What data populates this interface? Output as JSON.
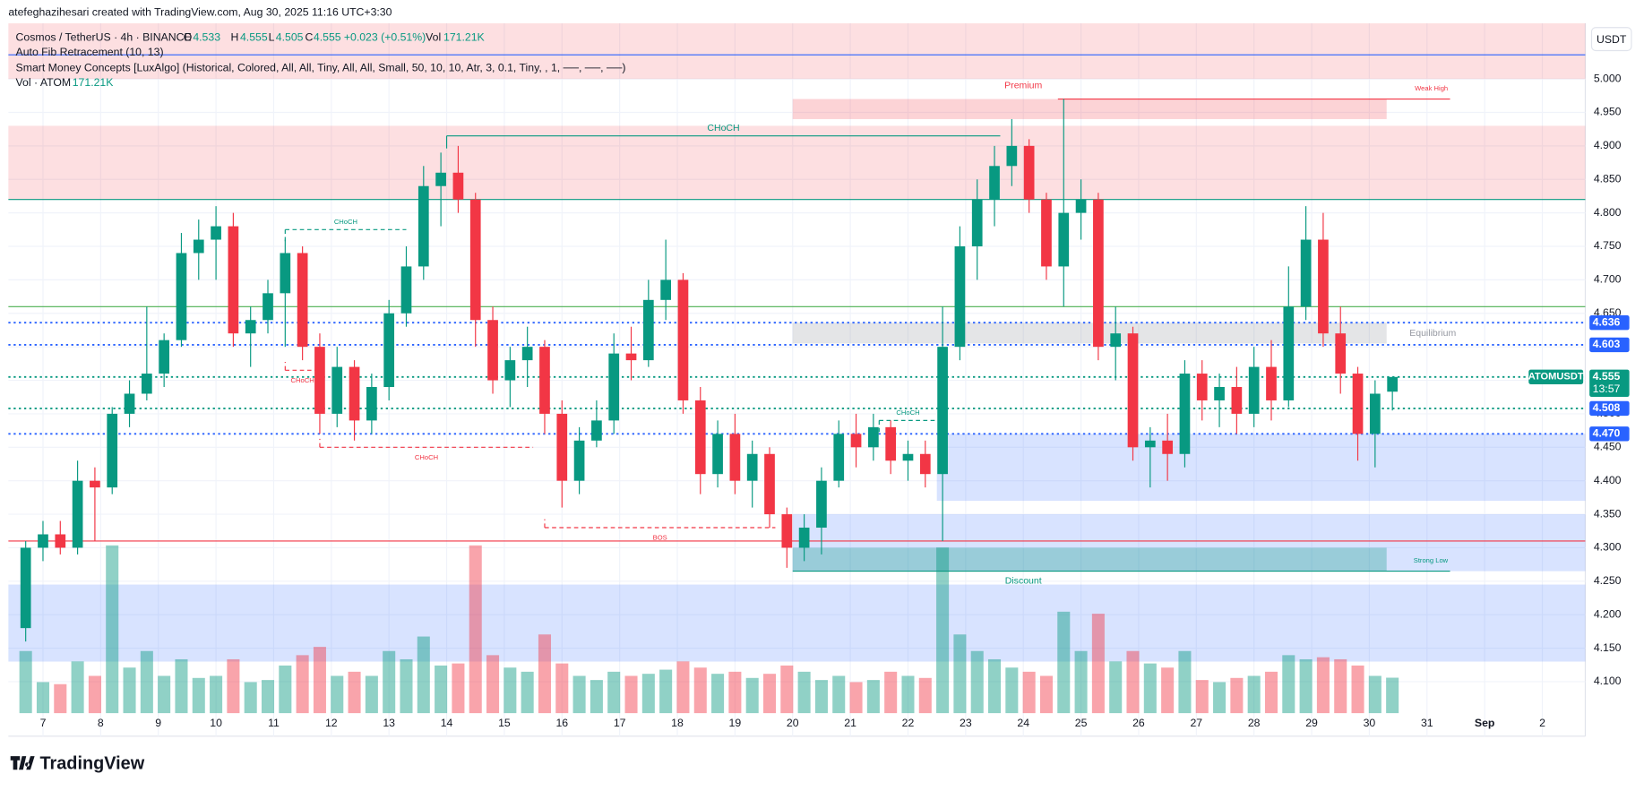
{
  "chart_data": {
    "type": "candlestick",
    "header": {
      "author_line": "atefeghazihesari created with TradingView.com, Aug 30, 2025 11:16 UTC+3:30",
      "symbol": "Cosmos / TetherUS · 4h · BINANCE",
      "ohlc": [
        {
          "key": "O",
          "value": "4.533"
        },
        {
          "key": "H",
          "value": "4.555"
        },
        {
          "key": "L",
          "value": "4.505"
        },
        {
          "key": "C",
          "value": "4.555"
        }
      ],
      "change": "+0.023 (+0.51%)",
      "vol_key": "Vol",
      "vol": "171.21K",
      "indicators": [
        "Auto Fib Retracement (10, 13)",
        "Smart Money Concepts [LuxAlgo] (Historical, Colored, All, All, Tiny, All, All, Small, 50, 10, 10, Atr, 3, 0.1, Tiny, , 1, ──, ──, ──)"
      ],
      "vol_pane": {
        "name": "Vol · ATOM",
        "value": "171.21K"
      }
    },
    "currency": "USDT",
    "logo": "TradingView",
    "price_badge": {
      "symbol": "ATOMUSDT",
      "price": "4.555",
      "countdown": "13:57",
      "value": 4.555
    },
    "xlim": [
      6.4,
      33.745
    ],
    "ylim": [
      4.053,
      5.083
    ],
    "xticks": [
      7,
      8,
      9,
      10,
      11,
      12,
      13,
      14,
      15,
      16,
      17,
      18,
      19,
      20,
      21,
      22,
      23,
      24,
      25,
      26,
      27,
      28,
      29,
      30,
      31,
      {
        "value": 32,
        "label": "Sep"
      },
      {
        "value": 33,
        "label": "2"
      }
    ],
    "yticks": [
      {
        "value": 4.1,
        "label": "4.100"
      },
      {
        "value": 4.15,
        "label": "4.150"
      },
      {
        "value": 4.2,
        "label": "4.200"
      },
      {
        "value": 4.25,
        "label": "4.250"
      },
      {
        "value": 4.3,
        "label": "4.300"
      },
      {
        "value": 4.35,
        "label": "4.350"
      },
      {
        "value": 4.4,
        "label": "4.400"
      },
      {
        "value": 4.45,
        "label": "4.450"
      },
      {
        "value": 4.5,
        "label": "4.500"
      },
      {
        "value": 4.55,
        "label": "4.550"
      },
      {
        "value": 4.6,
        "label": "4.600"
      },
      {
        "value": 4.65,
        "label": "4.650"
      },
      {
        "value": 4.7,
        "label": "4.700"
      },
      {
        "value": 4.75,
        "label": "4.750"
      },
      {
        "value": 4.8,
        "label": "4.800"
      },
      {
        "value": 4.85,
        "label": "4.850"
      },
      {
        "value": 4.9,
        "label": "4.900"
      },
      {
        "value": 4.95,
        "label": "4.950"
      },
      {
        "value": 5.0,
        "label": "5.000"
      }
    ],
    "up_color": "#089981",
    "down_color": "#f23645",
    "x": [
      6.7,
      7,
      7.3,
      7.6,
      7.9,
      8.2,
      8.5,
      8.8,
      9.1,
      9.4,
      9.7,
      10,
      10.3,
      10.6,
      10.9,
      11.2,
      11.5,
      11.8,
      12.1,
      12.4,
      12.7,
      13,
      13.3,
      13.6,
      13.9,
      14.2,
      14.5,
      14.8,
      15.1,
      15.4,
      15.7,
      16,
      16.3,
      16.6,
      16.9,
      17.2,
      17.5,
      17.8,
      18.1,
      18.4,
      18.7,
      19,
      19.3,
      19.6,
      19.9,
      20.2,
      20.5,
      20.8,
      21.1,
      21.4,
      21.7,
      22,
      22.3,
      22.6,
      22.9,
      23.2,
      23.5,
      23.8,
      24.1,
      24.4,
      24.7,
      25,
      25.3,
      25.6,
      25.9,
      26.2,
      26.5,
      26.8,
      27.1,
      27.4,
      27.7,
      28,
      28.3,
      28.6,
      28.9,
      29.2,
      29.5,
      29.8,
      30.1,
      30.4
    ],
    "open": [
      4.18,
      4.3,
      4.32,
      4.3,
      4.4,
      4.39,
      4.5,
      4.53,
      4.56,
      4.61,
      4.74,
      4.76,
      4.78,
      4.62,
      4.64,
      4.68,
      4.74,
      4.6,
      4.5,
      4.57,
      4.49,
      4.54,
      4.65,
      4.72,
      4.84,
      4.86,
      4.82,
      4.64,
      4.55,
      4.58,
      4.6,
      4.5,
      4.4,
      4.46,
      4.49,
      4.59,
      4.58,
      4.67,
      4.7,
      4.52,
      4.41,
      4.47,
      4.4,
      4.44,
      4.35,
      4.3,
      4.33,
      4.4,
      4.47,
      4.45,
      4.48,
      4.43,
      4.44,
      4.41,
      4.6,
      4.75,
      4.82,
      4.87,
      4.9,
      4.82,
      4.72,
      4.8,
      4.82,
      4.6,
      4.62,
      4.45,
      4.46,
      4.44,
      4.56,
      4.52,
      4.54,
      4.5,
      4.57,
      4.52,
      4.66,
      4.76,
      4.62,
      4.56,
      4.47,
      4.533
    ],
    "high": [
      4.31,
      4.34,
      4.34,
      4.43,
      4.42,
      4.51,
      4.55,
      4.66,
      4.62,
      4.77,
      4.79,
      4.81,
      4.8,
      4.66,
      4.7,
      4.76,
      4.75,
      4.62,
      4.6,
      4.58,
      4.56,
      4.67,
      4.75,
      4.87,
      4.89,
      4.9,
      4.83,
      4.66,
      4.6,
      4.63,
      4.61,
      4.52,
      4.48,
      4.52,
      4.62,
      4.63,
      4.7,
      4.76,
      4.71,
      4.54,
      4.49,
      4.5,
      4.46,
      4.45,
      4.36,
      4.35,
      4.42,
      4.49,
      4.5,
      4.5,
      4.49,
      4.46,
      4.46,
      4.66,
      4.78,
      4.85,
      4.9,
      4.94,
      4.91,
      4.83,
      4.97,
      4.85,
      4.83,
      4.66,
      4.63,
      4.48,
      4.5,
      4.58,
      4.58,
      4.56,
      4.57,
      4.6,
      4.61,
      4.72,
      4.81,
      4.8,
      4.66,
      4.57,
      4.55,
      4.555
    ],
    "low": [
      4.16,
      4.28,
      4.29,
      4.29,
      4.31,
      4.38,
      4.48,
      4.52,
      4.54,
      4.6,
      4.7,
      4.7,
      4.6,
      4.57,
      4.62,
      4.6,
      4.58,
      4.47,
      4.48,
      4.46,
      4.47,
      4.52,
      4.63,
      4.7,
      4.78,
      4.8,
      4.6,
      4.53,
      4.51,
      4.54,
      4.47,
      4.36,
      4.38,
      4.45,
      4.47,
      4.55,
      4.57,
      4.64,
      4.5,
      4.38,
      4.39,
      4.38,
      4.36,
      4.33,
      4.27,
      4.28,
      4.29,
      4.39,
      4.42,
      4.43,
      4.41,
      4.4,
      4.39,
      4.31,
      4.58,
      4.7,
      4.78,
      4.84,
      4.8,
      4.7,
      4.66,
      4.76,
      4.58,
      4.55,
      4.43,
      4.39,
      4.4,
      4.42,
      4.49,
      4.48,
      4.47,
      4.48,
      4.49,
      4.51,
      4.64,
      4.6,
      4.53,
      4.43,
      4.42,
      4.505
    ],
    "close": [
      4.3,
      4.32,
      4.3,
      4.4,
      4.39,
      4.5,
      4.53,
      4.56,
      4.61,
      4.74,
      4.76,
      4.78,
      4.62,
      4.64,
      4.68,
      4.74,
      4.6,
      4.5,
      4.57,
      4.49,
      4.54,
      4.65,
      4.72,
      4.84,
      4.86,
      4.82,
      4.64,
      4.55,
      4.58,
      4.6,
      4.5,
      4.4,
      4.46,
      4.49,
      4.59,
      4.58,
      4.67,
      4.7,
      4.52,
      4.41,
      4.47,
      4.4,
      4.44,
      4.35,
      4.3,
      4.33,
      4.4,
      4.47,
      4.45,
      4.48,
      4.43,
      4.44,
      4.41,
      4.6,
      4.75,
      4.82,
      4.87,
      4.9,
      4.82,
      4.72,
      4.8,
      4.82,
      4.6,
      4.62,
      4.45,
      4.46,
      4.44,
      4.56,
      4.52,
      4.54,
      4.5,
      4.57,
      4.52,
      4.66,
      4.76,
      4.62,
      4.56,
      4.47,
      4.53,
      4.555
    ],
    "volume": [
      300,
      150,
      140,
      250,
      180,
      810,
      220,
      300,
      180,
      260,
      170,
      180,
      260,
      150,
      160,
      230,
      280,
      320,
      180,
      200,
      180,
      300,
      260,
      370,
      230,
      240,
      810,
      280,
      220,
      200,
      380,
      240,
      180,
      160,
      200,
      180,
      190,
      210,
      250,
      220,
      190,
      200,
      170,
      190,
      230,
      200,
      160,
      180,
      150,
      160,
      200,
      180,
      170,
      800,
      380,
      300,
      260,
      220,
      200,
      180,
      490,
      300,
      480,
      250,
      300,
      240,
      220,
      300,
      160,
      150,
      170,
      180,
      200,
      280,
      260,
      270,
      260,
      230,
      180,
      171.21
    ],
    "zones": [
      {
        "y1": 5.0,
        "y2": 5.083,
        "x1": 6.4,
        "x2": 33.745,
        "color": "rgba(242,54,69,0.16)"
      },
      {
        "y1": 4.82,
        "y2": 4.93,
        "x1": 6.4,
        "x2": 33.745,
        "color": "rgba(242,54,69,0.16)"
      },
      {
        "y1": 4.94,
        "y2": 4.97,
        "x1": 20,
        "x2": 30.3,
        "color": "rgba(242,54,69,0.22)"
      },
      {
        "y1": 4.605,
        "y2": 4.636,
        "x1": 20,
        "x2": 30.3,
        "color": "rgba(120,123,134,0.2)"
      },
      {
        "y1": 4.37,
        "y2": 4.47,
        "x1": 22.5,
        "x2": 33.745,
        "color": "rgba(41,98,255,0.18)"
      },
      {
        "y1": 4.265,
        "y2": 4.35,
        "x1": 20,
        "x2": 33.745,
        "color": "rgba(41,98,255,0.18)"
      },
      {
        "y1": 4.265,
        "y2": 4.3,
        "x1": 20,
        "x2": 30.3,
        "color": "rgba(8,153,129,0.3)"
      },
      {
        "y1": 4.13,
        "y2": 4.245,
        "x1": 6.4,
        "x2": 33.745,
        "color": "rgba(41,98,255,0.18)"
      }
    ],
    "levels": [
      {
        "value": 5.036,
        "color": "#2962ff",
        "dotted": false
      },
      {
        "value": 4.82,
        "color": "#089981",
        "dotted": false
      },
      {
        "value": 4.66,
        "color": "#4caf50",
        "dotted": false
      },
      {
        "value": 4.636,
        "label": "4.636",
        "color": "#2962ff",
        "dotted": true
      },
      {
        "value": 4.603,
        "label": "4.603",
        "color": "#2962ff",
        "dotted": true
      },
      {
        "value": 4.555,
        "color": "#089981",
        "dotted": true
      },
      {
        "value": 4.508,
        "label": "4.508",
        "color": "#089981",
        "dotted": true
      },
      {
        "value": 4.47,
        "label": "4.470",
        "color": "#2962ff",
        "dotted": true
      },
      {
        "value": 4.31,
        "color": "#f23645",
        "dotted": false
      }
    ],
    "structures": [
      {
        "label": "CHoCH",
        "x1": 14.0,
        "x2": 23.6,
        "y": 4.915,
        "color": "#089981",
        "dashed": false
      },
      {
        "label": "CHoCH",
        "x1": 11.2,
        "x2": 13.3,
        "y": 4.775,
        "color": "#089981",
        "dashed": true
      },
      {
        "label": "CHoCH",
        "x1": 11.2,
        "x2": 11.8,
        "y": 4.565,
        "color": "#f23645",
        "dashed": true
      },
      {
        "label": "CHoCH",
        "x1": 11.8,
        "x2": 15.5,
        "y": 4.45,
        "color": "#f23645",
        "dashed": true
      },
      {
        "label": "BOS",
        "x1": 15.7,
        "x2": 19.7,
        "y": 4.33,
        "color": "#f23645",
        "dashed": true
      },
      {
        "label": "CHoCH",
        "x1": 21.5,
        "x2": 22.5,
        "y": 4.49,
        "color": "#089981",
        "dashed": true
      },
      {
        "label": "Weak High",
        "x1": 24.6,
        "x2": 31.4,
        "y": 4.97,
        "color": "#f23645",
        "dashed": false
      },
      {
        "label": "Strong Low",
        "x1": 20,
        "x2": 31.4,
        "y": 4.265,
        "color": "#089981",
        "dashed": false
      }
    ],
    "annotations": [
      {
        "text": "Premium",
        "x": 24.0,
        "y": 4.99,
        "color": "#f23645"
      },
      {
        "text": "Equilibrium",
        "x": 31.1,
        "y": 4.62,
        "color": "#9598a1"
      },
      {
        "text": "Discount",
        "x": 24.0,
        "y": 4.25,
        "color": "#089981"
      }
    ]
  }
}
